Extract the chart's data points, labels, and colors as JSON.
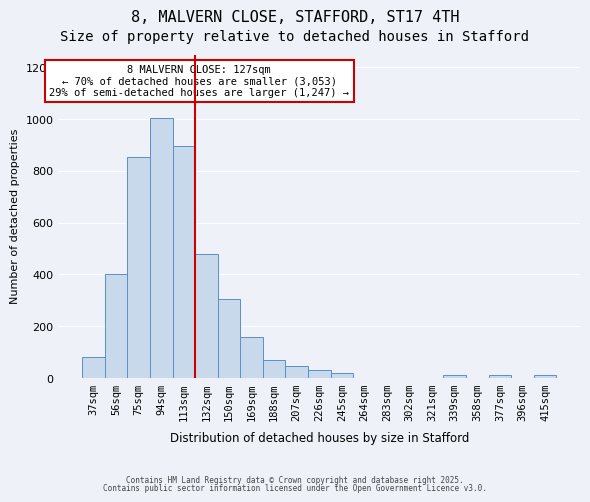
{
  "title1": "8, MALVERN CLOSE, STAFFORD, ST17 4TH",
  "title2": "Size of property relative to detached houses in Stafford",
  "xlabel": "Distribution of detached houses by size in Stafford",
  "ylabel": "Number of detached properties",
  "categories": [
    "37sqm",
    "56sqm",
    "75sqm",
    "94sqm",
    "113sqm",
    "132sqm",
    "150sqm",
    "169sqm",
    "188sqm",
    "207sqm",
    "226sqm",
    "245sqm",
    "264sqm",
    "283sqm",
    "302sqm",
    "321sqm",
    "339sqm",
    "358sqm",
    "377sqm",
    "396sqm",
    "415sqm"
  ],
  "values": [
    80,
    400,
    855,
    1005,
    895,
    480,
    305,
    160,
    70,
    45,
    30,
    20,
    0,
    0,
    0,
    0,
    10,
    0,
    10,
    0,
    10
  ],
  "bar_color": "#c9d9ec",
  "bar_edge_color": "#5b8fc9",
  "vline_x": 5,
  "vline_color": "#cc0000",
  "ylim": [
    0,
    1250
  ],
  "yticks": [
    0,
    200,
    400,
    600,
    800,
    1000,
    1200
  ],
  "annotation_title": "8 MALVERN CLOSE: 127sqm",
  "annotation_line1": "← 70% of detached houses are smaller (3,053)",
  "annotation_line2": "29% of semi-detached houses are larger (1,247) →",
  "annotation_box_color": "#ffffff",
  "annotation_box_edge": "#cc0000",
  "footer1": "Contains HM Land Registry data © Crown copyright and database right 2025.",
  "footer2": "Contains public sector information licensed under the Open Government Licence v3.0.",
  "background_color": "#eef2f8",
  "grid_color": "#ffffff",
  "title1_fontsize": 11,
  "title2_fontsize": 10
}
